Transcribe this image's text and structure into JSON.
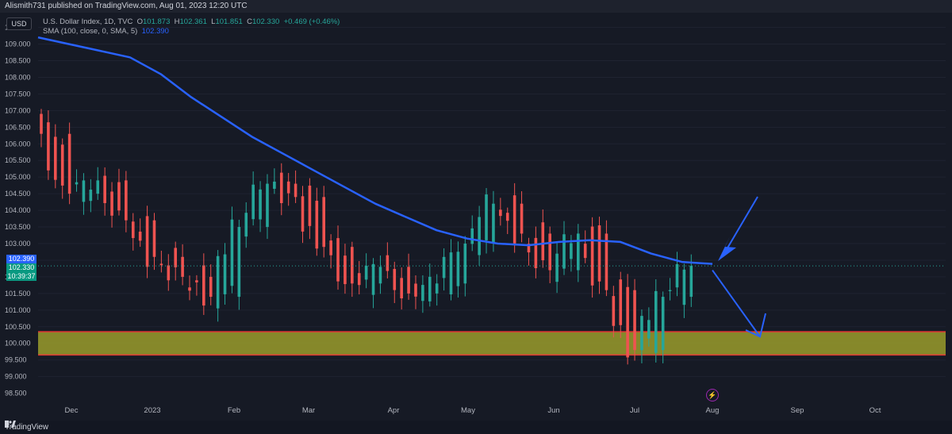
{
  "header": {
    "publisher_text": "Alismith731 published on TradingView.com, Aug 01, 2023 12:20 UTC"
  },
  "legend": {
    "symbol_line": "U.S. Dollar Index, 1D, TVC",
    "open_label": "O",
    "open": "101.873",
    "high_label": "H",
    "high": "102.361",
    "low_label": "L",
    "low": "101.851",
    "close_label": "C",
    "close": "102.330",
    "change": "+0.469 (+0.46%)",
    "sma_label": "SMA (100, close, 0, SMA, 5)",
    "sma_value": "102.390"
  },
  "currency_button": "USD",
  "price_axis": {
    "ticks": [
      "109.500",
      "109.000",
      "108.500",
      "108.000",
      "107.500",
      "107.000",
      "106.500",
      "106.000",
      "105.500",
      "105.000",
      "104.500",
      "104.000",
      "103.500",
      "103.000",
      "102.000",
      "101.500",
      "101.000",
      "100.500",
      "100.000",
      "99.500",
      "99.000",
      "98.500"
    ],
    "sma_badge": "102.390",
    "price_badge": "102.330",
    "countdown": "10:39:37"
  },
  "time_axis": {
    "labels": [
      "Dec",
      "2023",
      "Feb",
      "Mar",
      "Apr",
      "May",
      "Jun",
      "Jul",
      "Aug",
      "Sep",
      "Oct"
    ]
  },
  "footer": {
    "brand": "TradingView"
  },
  "colors": {
    "up": "#26a69a",
    "down": "#ef5350",
    "sma": "#2962ff",
    "zone": "#9a9c2c",
    "zone_border": "#e53935"
  },
  "chart_data": {
    "type": "candlestick",
    "symbol": "U.S. Dollar Index",
    "interval": "1D",
    "ylim": [
      98.3,
      109.8
    ],
    "x_labels": [
      "Dec",
      "2023",
      "Feb",
      "Mar",
      "Apr",
      "May",
      "Jun",
      "Jul",
      "Aug",
      "Sep",
      "Oct"
    ],
    "support_zone": [
      99.65,
      100.35
    ],
    "sma_100": [
      109.2,
      109.0,
      108.8,
      108.6,
      108.1,
      107.4,
      106.8,
      106.2,
      105.7,
      105.2,
      104.7,
      104.2,
      103.8,
      103.4,
      103.15,
      103.0,
      102.95,
      103.05,
      103.1,
      103.05,
      102.7,
      102.45,
      102.39
    ],
    "ohlc_sample": [
      [
        106.9,
        107.8,
        106.0,
        106.3
      ],
      [
        106.3,
        106.6,
        104.3,
        104.5
      ],
      [
        104.5,
        105.1,
        103.5,
        104.9
      ],
      [
        104.9,
        105.0,
        103.4,
        103.7
      ],
      [
        103.7,
        104.9,
        102.3,
        102.6
      ],
      [
        102.6,
        102.9,
        101.6,
        102.0
      ],
      [
        102.0,
        102.5,
        101.1,
        101.4
      ],
      [
        101.4,
        103.8,
        101.0,
        103.5
      ],
      [
        103.5,
        105.0,
        103.0,
        104.8
      ],
      [
        104.8,
        105.7,
        104.2,
        104.4
      ],
      [
        104.4,
        104.7,
        102.6,
        102.9
      ],
      [
        102.9,
        103.0,
        101.6,
        101.8
      ],
      [
        101.8,
        102.6,
        101.0,
        102.3
      ],
      [
        102.3,
        102.5,
        101.2,
        101.5
      ],
      [
        101.5,
        102.2,
        101.0,
        101.8
      ],
      [
        101.8,
        103.2,
        101.6,
        103.0
      ],
      [
        103.0,
        104.7,
        102.9,
        104.2
      ],
      [
        104.2,
        104.4,
        102.9,
        103.3
      ],
      [
        103.3,
        103.5,
        102.1,
        102.2
      ],
      [
        102.2,
        103.5,
        102.0,
        103.3
      ],
      [
        103.3,
        103.5,
        101.3,
        101.6
      ],
      [
        101.6,
        101.8,
        99.6,
        99.8
      ],
      [
        99.8,
        101.5,
        99.8,
        101.4
      ],
      [
        101.4,
        102.4,
        101.2,
        102.33
      ]
    ]
  }
}
